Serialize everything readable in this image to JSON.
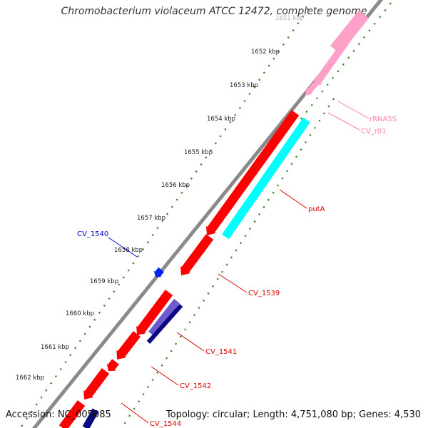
{
  "title": "Chromobacterium violaceum ATCC 12472, complete genome",
  "footer": {
    "accession": "Accession: NC_005085",
    "summary": "Topology: circular; Length: 4,751,080 bp; Genes: 4,530"
  },
  "colors": {
    "backbone": "#8a8a8a",
    "cds_red": "#ff0000",
    "cds_cyan": "#00ffff",
    "cds_navy": "#0a0a80",
    "cds_purple": "#6a5acd",
    "cds_blue": "#0022ee",
    "rrna_pink": "#ffa0c8",
    "tick_green": "#2e7d1e"
  },
  "ticks": [
    {
      "label": "1651 kbp",
      "faded": true
    },
    {
      "label": "1652 kbp"
    },
    {
      "label": "1653 kbp"
    },
    {
      "label": "1654 kbp"
    },
    {
      "label": "1655 kbp"
    },
    {
      "label": "1656 kbp"
    },
    {
      "label": "1657 kbp"
    },
    {
      "label": "1658 kbp"
    },
    {
      "label": "1659 kbp"
    },
    {
      "label": "1660 kbp"
    },
    {
      "label": "1661 kbp"
    },
    {
      "label": "1662 kbp"
    }
  ],
  "gene_labels": [
    {
      "text": "rRNA5S",
      "color": "#ff80b0"
    },
    {
      "text": "CV_r01",
      "color": "#ff80b0"
    },
    {
      "text": "putA",
      "color": "#e00000"
    },
    {
      "text": "CV_1540",
      "color": "#0000cc"
    },
    {
      "text": "CV_1539",
      "color": "#e00000"
    },
    {
      "text": "CV_1541",
      "color": "#e00000"
    },
    {
      "text": "CV_1542",
      "color": "#e00000"
    },
    {
      "text": "CV_1544",
      "color": "#e00000"
    }
  ]
}
